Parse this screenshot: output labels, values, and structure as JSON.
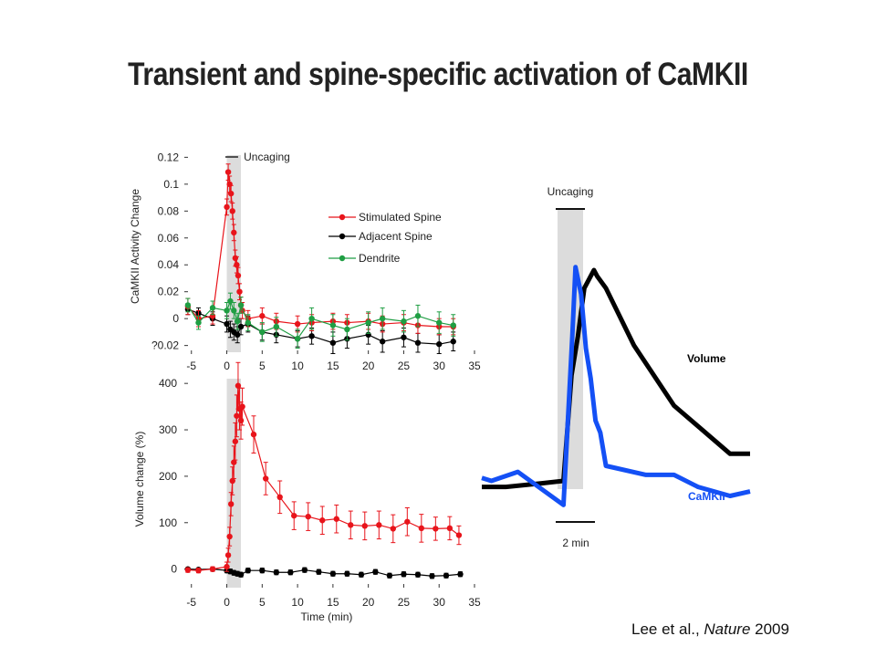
{
  "title": "Transient and spine-specific activation of CaMKII",
  "citation": {
    "authors": "Lee et al., ",
    "journal": "Nature",
    "year": " 2009"
  },
  "colors": {
    "stimulated": "#e8141b",
    "adjacent": "#000000",
    "dendrite": "#1f9e43",
    "camkii": "#1450f5",
    "volume": "#000000",
    "shade": "#dcdcdc"
  },
  "chart_data": [
    {
      "type": "line",
      "ylabel": "CaMKII Activity Change",
      "xlabel": "",
      "xlim": [
        -6,
        35
      ],
      "ylim": [
        -0.025,
        0.125
      ],
      "xticks": [
        -5,
        0,
        5,
        10,
        15,
        20,
        25,
        30,
        35
      ],
      "yticks": [
        -0.02,
        0,
        0.02,
        0.04,
        0.06,
        0.08,
        0.1,
        0.12
      ],
      "ytick_labels": [
        "?0.02",
        "0",
        "0.02",
        "0.04",
        "0.06",
        "0.08",
        "0.1",
        "0.12"
      ],
      "annotation": "Uncaging",
      "uncaging_window": [
        0,
        2
      ],
      "legend_position": "right",
      "series": [
        {
          "name": "Stimulated Spine",
          "color_key": "stimulated",
          "x": [
            -5.5,
            -4,
            -2,
            0,
            0.2,
            0.4,
            0.6,
            0.8,
            1.0,
            1.2,
            1.4,
            1.6,
            1.8,
            2.0,
            2.2,
            3,
            5,
            7,
            10,
            12,
            15,
            17,
            20,
            22,
            25,
            27,
            30,
            32
          ],
          "y": [
            0.009,
            0,
            0.002,
            0.083,
            0.109,
            0.1,
            0.093,
            0.08,
            0.064,
            0.045,
            0.04,
            0.032,
            0.02,
            0.01,
            0.006,
            0,
            0.002,
            -0.002,
            -0.004,
            -0.003,
            -0.002,
            -0.003,
            -0.002,
            -0.004,
            -0.003,
            -0.005,
            -0.006,
            -0.006
          ]
        },
        {
          "name": "Adjacent Spine",
          "color_key": "adjacent",
          "x": [
            -5.5,
            -4,
            -2,
            0,
            0.5,
            1,
            1.5,
            2,
            3,
            5,
            7,
            10,
            12,
            15,
            17,
            20,
            22,
            25,
            27,
            30,
            32
          ],
          "y": [
            0.007,
            0.004,
            0,
            -0.004,
            -0.008,
            -0.01,
            -0.012,
            -0.006,
            -0.004,
            -0.01,
            -0.012,
            -0.015,
            -0.013,
            -0.018,
            -0.015,
            -0.012,
            -0.017,
            -0.014,
            -0.018,
            -0.019,
            -0.017
          ],
          "err": [
            0.004,
            0.004,
            0.005,
            0.006,
            0.006,
            0.006,
            0.006,
            0.006,
            0.006,
            0.006,
            0.006,
            0.006,
            0.006,
            0.008,
            0.007,
            0.007,
            0.008,
            0.007,
            0.007,
            0.007,
            0.007
          ]
        },
        {
          "name": "Dendrite",
          "color_key": "dendrite",
          "x": [
            -5.5,
            -4,
            -2,
            0,
            0.5,
            1,
            1.5,
            2,
            3,
            5,
            7,
            10,
            12,
            15,
            17,
            20,
            22,
            25,
            27,
            30,
            32
          ],
          "y": [
            0.01,
            -0.003,
            0.008,
            0.006,
            0.013,
            0.006,
            -0.002,
            0.01,
            -0.003,
            -0.01,
            -0.006,
            -0.015,
            0,
            -0.005,
            -0.008,
            -0.003,
            0,
            -0.002,
            0.002,
            -0.003,
            -0.005
          ],
          "err": [
            0.005,
            0.005,
            0.005,
            0.006,
            0.006,
            0.006,
            0.006,
            0.006,
            0.006,
            0.007,
            0.007,
            0.007,
            0.008,
            0.008,
            0.008,
            0.008,
            0.008,
            0.008,
            0.008,
            0.008,
            0.008
          ]
        }
      ]
    },
    {
      "type": "line",
      "ylabel": "Volume change (%)",
      "xlabel": "Time (min)",
      "xlim": [
        -6,
        35
      ],
      "ylim": [
        -40,
        420
      ],
      "xticks": [
        -5,
        0,
        5,
        10,
        15,
        20,
        25,
        30,
        35
      ],
      "yticks": [
        0,
        100,
        200,
        300,
        400
      ],
      "uncaging_window": [
        0,
        2
      ],
      "series": [
        {
          "name": "Stimulated Spine",
          "color_key": "stimulated",
          "x": [
            -5.5,
            -4,
            -2,
            0,
            0.2,
            0.4,
            0.6,
            0.8,
            1.0,
            1.2,
            1.4,
            1.6,
            1.8,
            2.0,
            2.2,
            3.8,
            5.5,
            7.5,
            9.5,
            11.5,
            13.5,
            15.5,
            17.5,
            19.5,
            21.5,
            23.5,
            25.5,
            27.5,
            29.5,
            31.5,
            32.8
          ],
          "y": [
            -2,
            -3,
            0,
            5,
            30,
            70,
            140,
            190,
            230,
            275,
            330,
            395,
            345,
            320,
            350,
            290,
            195,
            155,
            115,
            113,
            105,
            108,
            95,
            93,
            95,
            87,
            102,
            88,
            87,
            88,
            73
          ],
          "err": [
            5,
            5,
            5,
            10,
            15,
            20,
            25,
            30,
            35,
            40,
            45,
            50,
            45,
            40,
            40,
            40,
            35,
            35,
            30,
            30,
            30,
            30,
            30,
            30,
            30,
            30,
            30,
            30,
            25,
            25,
            20
          ]
        },
        {
          "name": "Adjacent Spine",
          "color_key": "adjacent",
          "x": [
            -5.5,
            -4,
            -2,
            0,
            0.5,
            1,
            1.5,
            2,
            3,
            5,
            7,
            9,
            11,
            13,
            15,
            17,
            19,
            21,
            23,
            25,
            27,
            29,
            31,
            33
          ],
          "y": [
            0,
            -1,
            0,
            -3,
            -5,
            -8,
            -10,
            -12,
            -3,
            -3,
            -7,
            -7,
            -2,
            -6,
            -10,
            -10,
            -12,
            -6,
            -14,
            -11,
            -12,
            -15,
            -14,
            -11
          ],
          "err": [
            3,
            3,
            3,
            5,
            5,
            5,
            5,
            5,
            5,
            5,
            5,
            5,
            5,
            5,
            5,
            5,
            5,
            5,
            5,
            5,
            5,
            5,
            5,
            5
          ]
        }
      ]
    },
    {
      "type": "line",
      "annotation": "Uncaging",
      "scale_bar": "2 min",
      "series": [
        {
          "name": "Volume",
          "color_key": "volume",
          "x": [
            0,
            3,
            7.5,
            10.2,
            11.2,
            12,
            12.8,
            13.4,
            14,
            14.4,
            15.5,
            19,
            24,
            31,
            33.5
          ],
          "y": [
            0.08,
            0.08,
            0.092,
            0.1,
            0.45,
            0.58,
            0.74,
            0.77,
            0.8,
            0.78,
            0.74,
            0.55,
            0.35,
            0.19,
            0.19
          ]
        },
        {
          "name": "CaMKII",
          "color_key": "camkii",
          "x": [
            0,
            1.2,
            4.5,
            10.2,
            11.3,
            11.7,
            12.4,
            13,
            13.6,
            14.2,
            14.8,
            15.5,
            20.5,
            24,
            27,
            31,
            33.5
          ],
          "y": [
            0.11,
            0.1,
            0.13,
            0.02,
            0.58,
            0.81,
            0.72,
            0.54,
            0.44,
            0.3,
            0.26,
            0.15,
            0.12,
            0.12,
            0.08,
            0.05,
            0.065
          ]
        }
      ]
    }
  ]
}
